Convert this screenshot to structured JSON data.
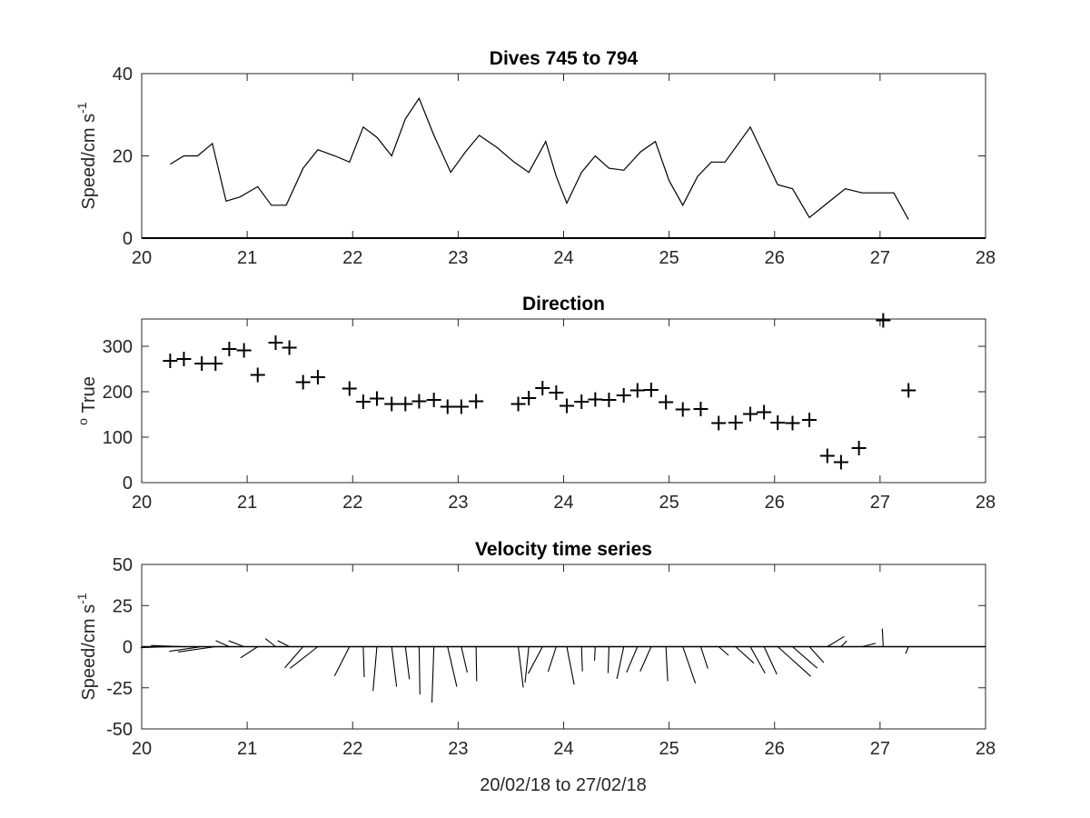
{
  "figure": {
    "xlabel": "20/02/18 to 27/02/18"
  },
  "chart_data": [
    {
      "type": "line",
      "title": "Dives 745 to 794",
      "ylabel": "Speed/cm s",
      "ylabel_sup": "-1",
      "xlim": [
        20,
        28
      ],
      "ylim": [
        0,
        40
      ],
      "xticks": [
        "20",
        "21",
        "22",
        "23",
        "24",
        "25",
        "26",
        "27",
        "28"
      ],
      "yticks": [
        "0",
        "20",
        "40"
      ],
      "grid": false,
      "series": [
        {
          "x": [
            20.27,
            20.4,
            20.53,
            20.67,
            20.8,
            20.93,
            21.1,
            21.23,
            21.37,
            21.53,
            21.67,
            21.83,
            21.97,
            22.1,
            22.23,
            22.37,
            22.5,
            22.63,
            22.77,
            22.93,
            23.07,
            23.2,
            23.37,
            23.53,
            23.67,
            23.83,
            23.93,
            24.03,
            24.17,
            24.3,
            24.43,
            24.57,
            24.73,
            24.87,
            25.0,
            25.13,
            25.27,
            25.4,
            25.53,
            25.77,
            25.9,
            26.03,
            26.17,
            26.33,
            26.5,
            26.67,
            26.83,
            27.0,
            27.13,
            27.27
          ],
          "values": [
            18,
            20,
            20,
            23,
            9,
            10,
            12.5,
            8,
            8,
            17,
            21.5,
            20,
            18.5,
            27,
            24.5,
            20,
            29,
            34,
            25,
            16,
            21,
            25,
            22,
            18.5,
            16,
            23.5,
            15,
            8.5,
            16,
            20,
            17,
            16.5,
            21,
            23.5,
            14,
            8,
            15,
            18.5,
            18.5,
            27,
            20,
            13,
            12,
            5,
            8.5,
            12,
            11,
            11,
            11,
            4.5
          ]
        }
      ]
    },
    {
      "type": "scatter",
      "title": "Direction",
      "ylabel": "True",
      "ylabel_prefix": "o",
      "xlim": [
        20,
        28
      ],
      "ylim": [
        0,
        360
      ],
      "xticks": [
        "20",
        "21",
        "22",
        "23",
        "24",
        "25",
        "26",
        "27",
        "28"
      ],
      "yticks": [
        "0",
        "100",
        "200",
        "300"
      ],
      "grid": false,
      "marker": "+",
      "series": [
        {
          "x": [
            20.27,
            20.4,
            20.57,
            20.7,
            20.83,
            20.97,
            21.1,
            21.27,
            21.4,
            21.53,
            21.67,
            21.97,
            22.1,
            22.23,
            22.37,
            22.5,
            22.63,
            22.77,
            22.9,
            23.03,
            23.17,
            23.57,
            23.67,
            23.8,
            23.93,
            24.03,
            24.17,
            24.3,
            24.43,
            24.57,
            24.7,
            24.83,
            24.97,
            25.13,
            25.3,
            25.47,
            25.63,
            25.77,
            25.9,
            26.03,
            26.17,
            26.33,
            26.5,
            26.63,
            26.8,
            27.03,
            27.27
          ],
          "values": [
            268,
            272,
            262,
            262,
            294,
            291,
            237,
            308,
            297,
            221,
            232,
            207,
            178,
            185,
            173,
            173,
            179,
            182,
            167,
            167,
            179,
            173,
            186,
            208,
            198,
            169,
            178,
            183,
            182,
            192,
            203,
            204,
            177,
            161,
            162,
            131,
            132,
            151,
            155,
            132,
            131,
            138,
            59,
            45,
            76,
            357,
            203
          ]
        }
      ]
    },
    {
      "type": "quiver",
      "title": "Velocity time series",
      "ylabel": "Speed/cm s",
      "ylabel_sup": "-1",
      "xlim": [
        20,
        28
      ],
      "ylim": [
        -50,
        50
      ],
      "xticks": [
        "20",
        "21",
        "22",
        "23",
        "24",
        "25",
        "26",
        "27",
        "28"
      ],
      "yticks": [
        "-50",
        "-25",
        "0",
        "25",
        "50"
      ],
      "grid": false,
      "series": [
        {
          "x": [
            20.27,
            20.4,
            20.57,
            20.7,
            20.83,
            20.97,
            21.1,
            21.27,
            21.4,
            21.53,
            21.67,
            21.97,
            22.1,
            22.23,
            22.37,
            22.5,
            22.63,
            22.77,
            22.9,
            23.03,
            23.17,
            23.57,
            23.67,
            23.8,
            23.93,
            24.03,
            24.17,
            24.3,
            24.43,
            24.57,
            24.7,
            24.83,
            24.97,
            25.13,
            25.3,
            25.47,
            25.63,
            25.77,
            25.9,
            26.03,
            26.17,
            26.33,
            26.5,
            26.63,
            26.83,
            27.03,
            27.27
          ],
          "speed": [
            18,
            20,
            20,
            23,
            9,
            10,
            12.5,
            8,
            8,
            17,
            21.5,
            20,
            18.5,
            27,
            24.5,
            20,
            29,
            34,
            25,
            16,
            21,
            25,
            22,
            18.5,
            16,
            23.5,
            15,
            8.5,
            16,
            20,
            17,
            16.5,
            21,
            23.5,
            14,
            8,
            15,
            18.5,
            18.5,
            27,
            20,
            13,
            12,
            5,
            8.5,
            11,
            4.5
          ],
          "direction": [
            268,
            272,
            262,
            262,
            294,
            291,
            237,
            308,
            297,
            221,
            232,
            207,
            178,
            185,
            173,
            173,
            179,
            182,
            167,
            167,
            179,
            173,
            186,
            208,
            198,
            169,
            178,
            183,
            182,
            192,
            203,
            204,
            177,
            161,
            162,
            131,
            132,
            151,
            155,
            132,
            131,
            138,
            59,
            45,
            76,
            357,
            203
          ]
        }
      ]
    }
  ]
}
